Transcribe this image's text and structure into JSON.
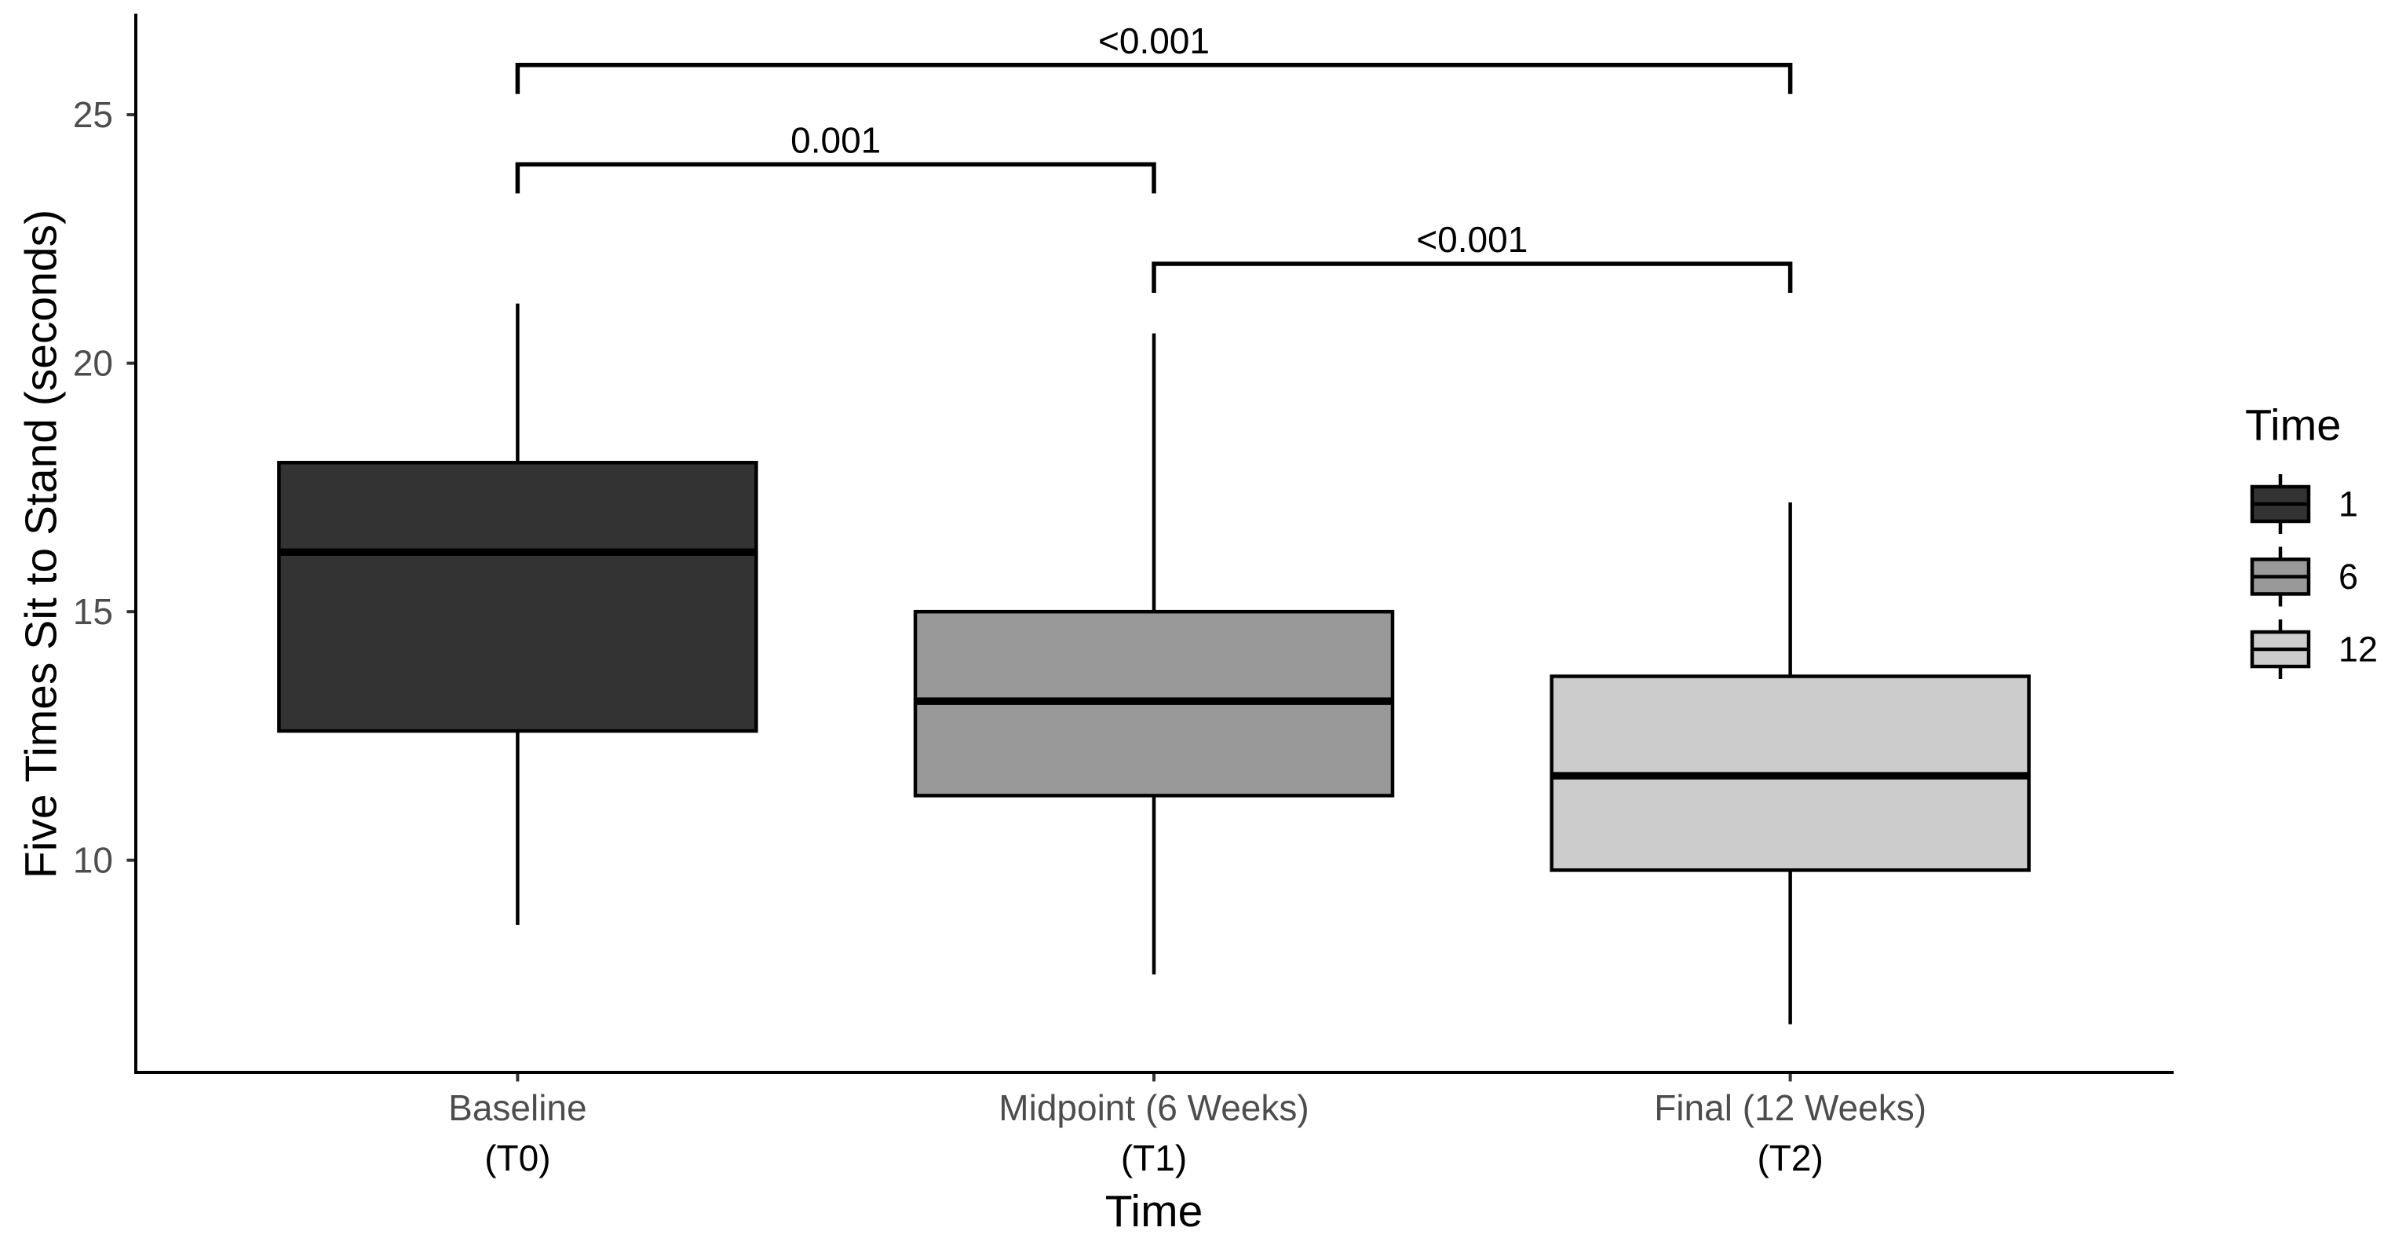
{
  "chart_data": {
    "type": "box",
    "xlabel": "Time",
    "ylabel": "Five Times Sit to Stand (seconds)",
    "categories": [
      "Baseline",
      "Midpoint (6 Weeks)",
      "Final (12 Weeks)"
    ],
    "category_sublabels": [
      "(T0)",
      "(T1)",
      "(T2)"
    ],
    "ylim": [
      5.73,
      27.0
    ],
    "yticks": [
      10,
      15,
      20,
      25
    ],
    "grid": false,
    "legend": {
      "title": "Time",
      "position": "right"
    },
    "series": [
      {
        "name": "1",
        "color": "#333333",
        "whisker_low": 8.7,
        "q1": 12.6,
        "median": 16.2,
        "q3": 18.0,
        "whisker_high": 21.2
      },
      {
        "name": "6",
        "color": "#999999",
        "whisker_low": 7.7,
        "q1": 11.3,
        "median": 13.2,
        "q3": 15.0,
        "whisker_high": 20.6
      },
      {
        "name": "12",
        "color": "#CCCCCC",
        "whisker_low": 6.7,
        "q1": 9.8,
        "median": 11.7,
        "q3": 13.7,
        "whisker_high": 17.2
      }
    ],
    "annotations": [
      {
        "groups": [
          0,
          2
        ],
        "y": 26.0,
        "label": "<0.001"
      },
      {
        "groups": [
          0,
          1
        ],
        "y": 24.0,
        "label": "0.001"
      },
      {
        "groups": [
          1,
          2
        ],
        "y": 22.0,
        "label": "<0.001"
      }
    ]
  }
}
